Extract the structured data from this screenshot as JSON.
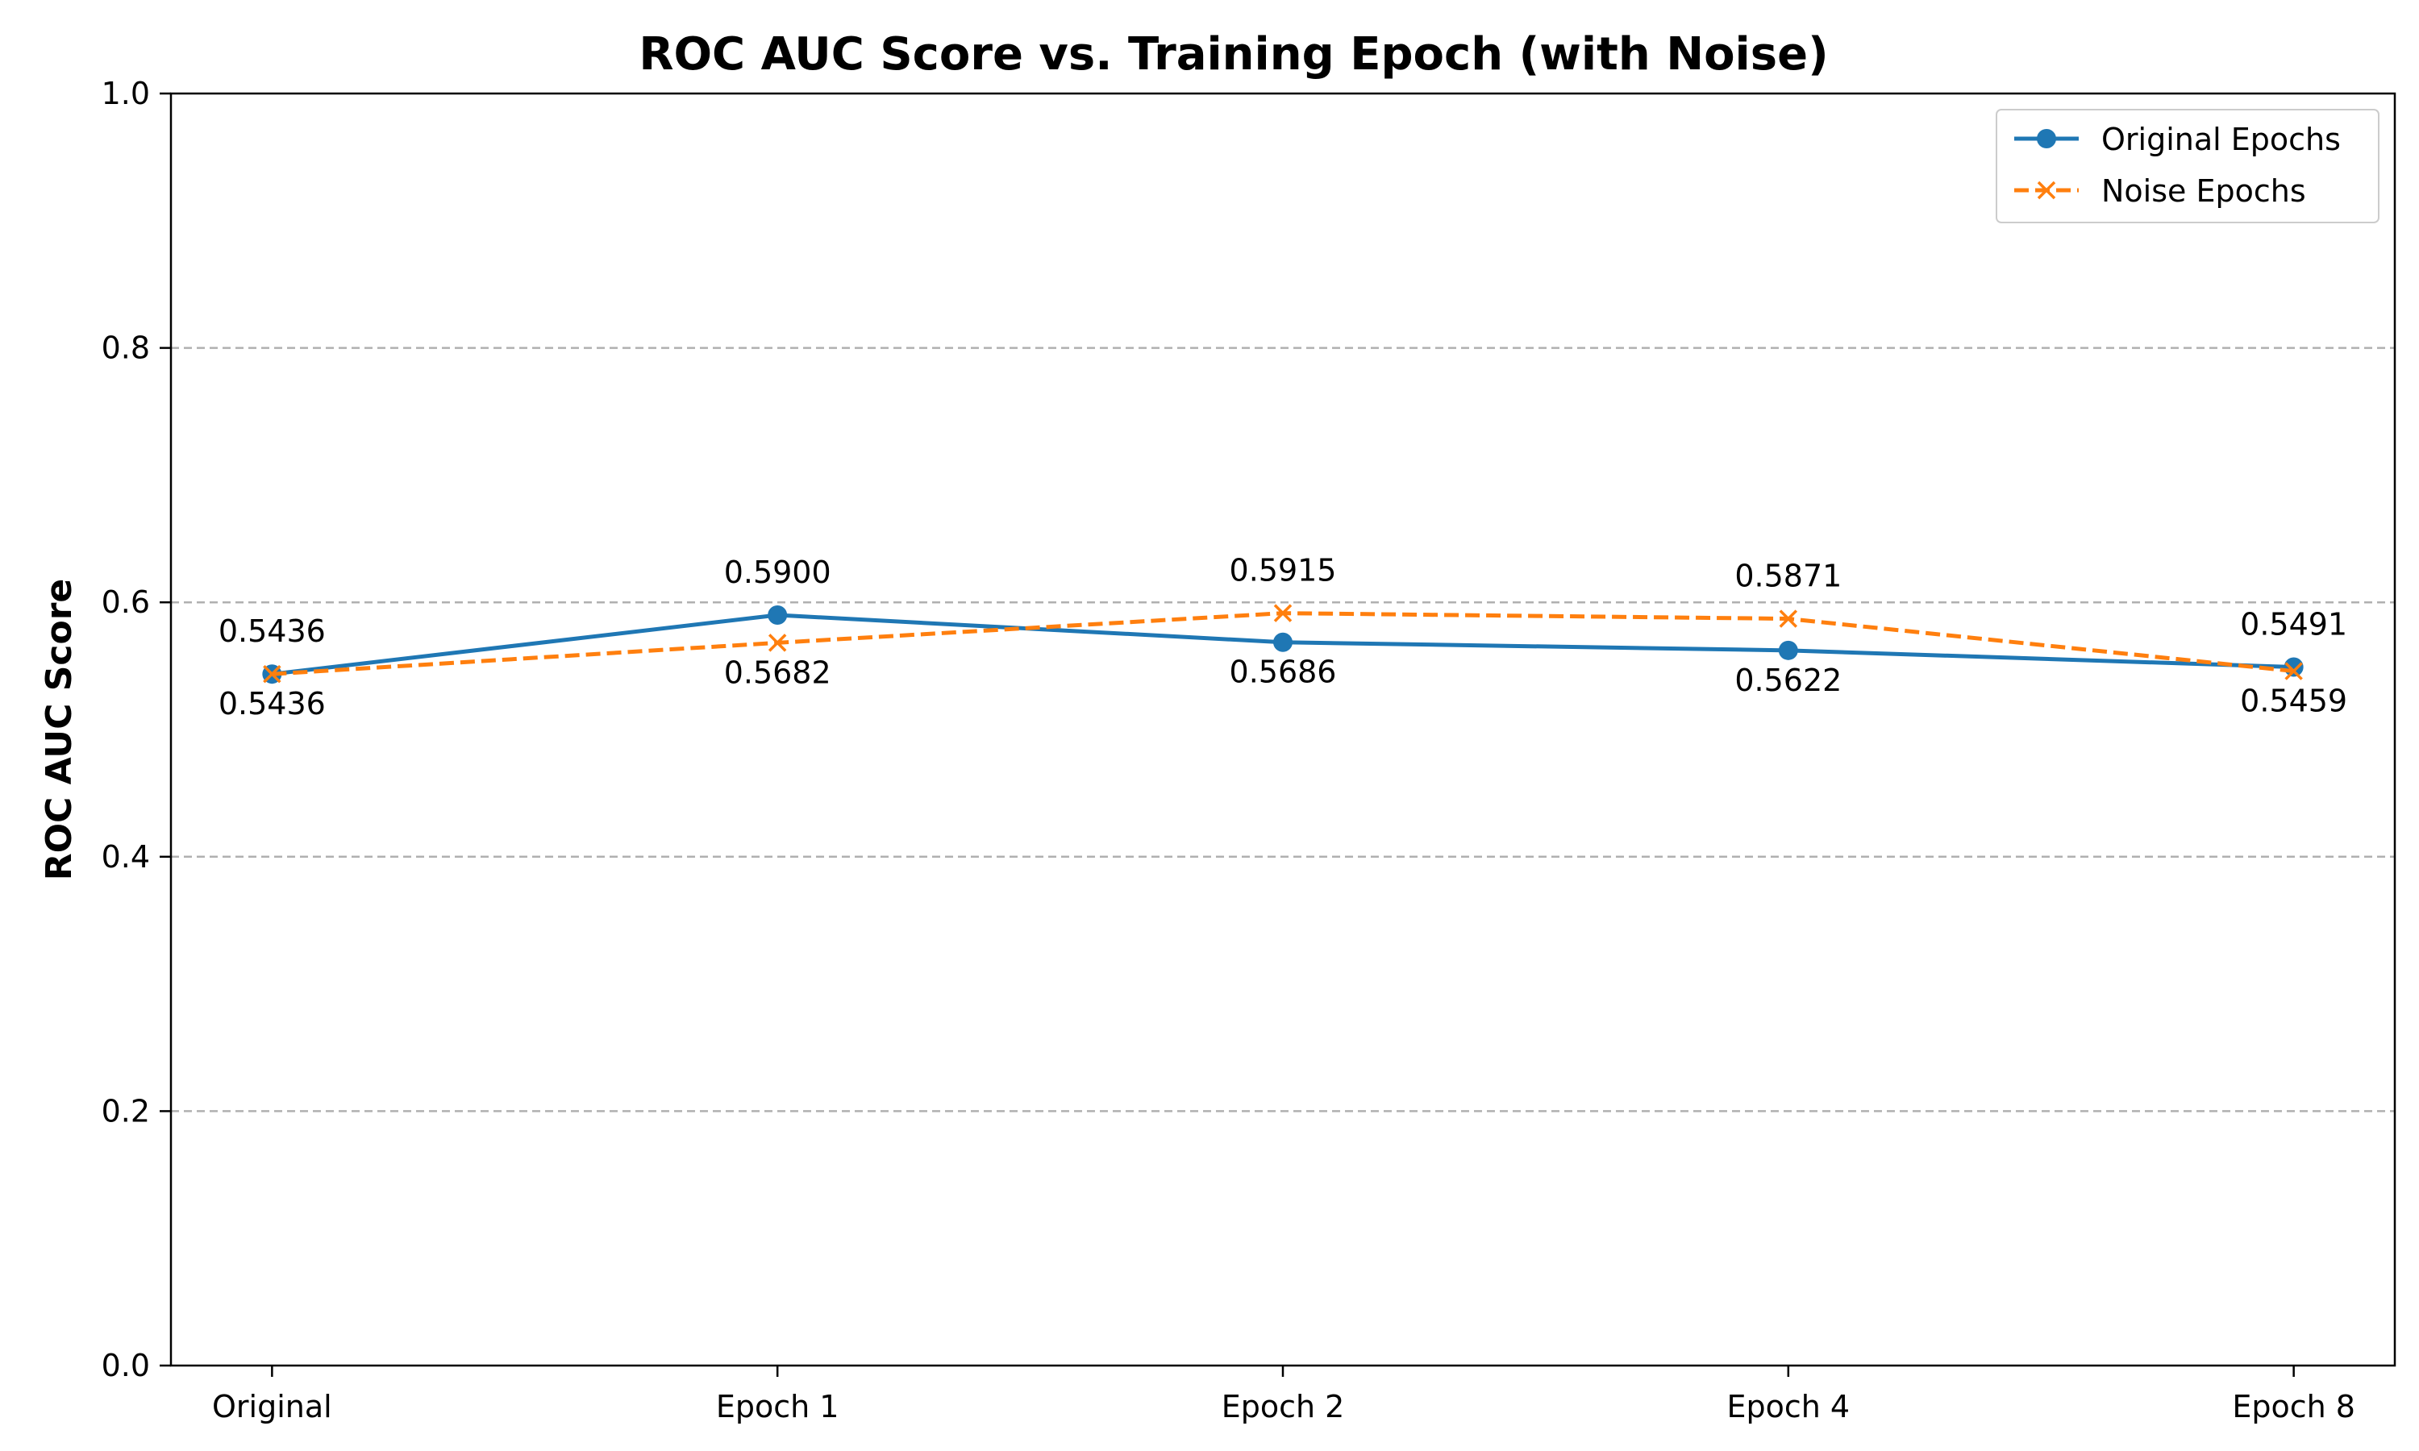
{
  "chart_data": {
    "type": "line",
    "title": "ROC AUC Score vs. Training Epoch (with Noise)",
    "xlabel": "",
    "ylabel": "ROC AUC Score",
    "categories": [
      "Original",
      "Epoch 1",
      "Epoch 2",
      "Epoch 4",
      "Epoch 8"
    ],
    "ylim": [
      0.0,
      1.0
    ],
    "yticks": [
      "0.0",
      "0.2",
      "0.4",
      "0.6",
      "0.8",
      "1.0"
    ],
    "grid": "y-dashed",
    "legend_position": "top-right",
    "series": [
      {
        "name": "Original Epochs",
        "values": [
          0.5436,
          0.59,
          0.5686,
          0.5622,
          0.5491
        ],
        "labels": [
          "0.5436",
          "0.5900",
          "0.5686",
          "0.5622",
          "0.5491"
        ],
        "color": "#1f77b4",
        "line_style": "solid",
        "marker": "circle"
      },
      {
        "name": "Noise Epochs",
        "values": [
          0.5436,
          0.5682,
          0.5915,
          0.5871,
          0.5459
        ],
        "labels": [
          "0.5436",
          "0.5682",
          "0.5915",
          "0.5871",
          "0.5459"
        ],
        "color": "#ff7f0e",
        "line_style": "dashed",
        "marker": "x"
      }
    ]
  }
}
